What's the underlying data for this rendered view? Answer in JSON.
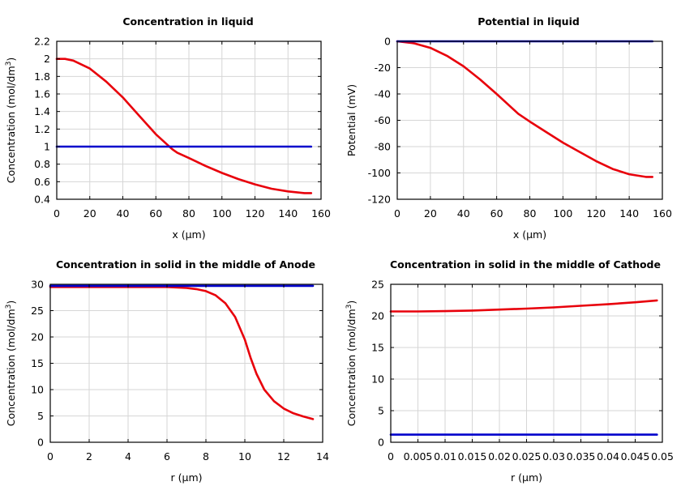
{
  "colors": {
    "red": "#e8000b",
    "blue": "#0000cc"
  },
  "chart_data": [
    {
      "type": "line",
      "title": "Concentration in liquid",
      "xlabel": "x (μm)",
      "ylabel": "Concentration (mol/dm",
      "ylabel_sup": "3",
      "ylabel_end": ")",
      "xlim": [
        0,
        160
      ],
      "ylim": [
        0.4,
        2.2
      ],
      "xticks": [
        0,
        20,
        40,
        60,
        80,
        100,
        120,
        140,
        160
      ],
      "xtick_labels": [
        "0",
        "20",
        "40",
        "60",
        "80",
        "100",
        "120",
        "140",
        "160"
      ],
      "yticks": [
        0.4,
        0.6,
        0.8,
        1.0,
        1.2,
        1.4,
        1.6,
        1.8,
        2.0,
        2.2
      ],
      "ytick_labels": [
        "0.4",
        "0.6",
        "0.8",
        "1",
        "1.2",
        "1.4",
        "1.6",
        "1.8",
        "2",
        "2.2"
      ],
      "grid": true,
      "series": [
        {
          "color": "#e8000b",
          "x": [
            0,
            5,
            10,
            20,
            30,
            40,
            50,
            60,
            70,
            73,
            80,
            90,
            100,
            110,
            120,
            130,
            140,
            150,
            154
          ],
          "y": [
            2.0,
            2.0,
            1.98,
            1.89,
            1.74,
            1.56,
            1.35,
            1.14,
            0.97,
            0.93,
            0.87,
            0.78,
            0.7,
            0.63,
            0.57,
            0.52,
            0.49,
            0.47,
            0.47
          ]
        },
        {
          "color": "#0000cc",
          "x": [
            0,
            154
          ],
          "y": [
            1.0,
            1.0
          ]
        }
      ]
    },
    {
      "type": "line",
      "title": "Potential in liquid",
      "xlabel": "x (μm)",
      "ylabel": "Potential (mV)",
      "ylabel_sup": "",
      "ylabel_end": "",
      "xlim": [
        0,
        160
      ],
      "ylim": [
        -120,
        0
      ],
      "xticks": [
        0,
        20,
        40,
        60,
        80,
        100,
        120,
        140,
        160
      ],
      "xtick_labels": [
        "0",
        "20",
        "40",
        "60",
        "80",
        "100",
        "120",
        "140",
        "160"
      ],
      "yticks": [
        -120,
        -100,
        -80,
        -60,
        -40,
        -20,
        0
      ],
      "ytick_labels": [
        "-120",
        "-100",
        "-80",
        "-60",
        "-40",
        "-20",
        "0"
      ],
      "grid": true,
      "series": [
        {
          "color": "#e8000b",
          "x": [
            0,
            10,
            20,
            30,
            40,
            50,
            60,
            73,
            80,
            90,
            100,
            110,
            120,
            130,
            140,
            150,
            154
          ],
          "y": [
            0,
            -1.5,
            -5,
            -11,
            -19,
            -29,
            -40,
            -55,
            -61,
            -69,
            -77,
            -84,
            -91,
            -97,
            -101,
            -103,
            -103
          ]
        },
        {
          "color": "#0000cc",
          "x": [
            0,
            154
          ],
          "y": [
            0,
            0
          ]
        }
      ]
    },
    {
      "type": "line",
      "title": "Concentration in solid in the middle of Anode",
      "xlabel": "r (μm)",
      "ylabel": "Concentration (mol/dm",
      "ylabel_sup": "3",
      "ylabel_end": ")",
      "xlim": [
        0,
        14
      ],
      "ylim": [
        0,
        30
      ],
      "xticks": [
        0,
        2,
        4,
        6,
        8,
        10,
        12,
        14
      ],
      "xtick_labels": [
        "0",
        "2",
        "4",
        "6",
        "8",
        "10",
        "12",
        "14"
      ],
      "yticks": [
        0,
        5,
        10,
        15,
        20,
        25,
        30
      ],
      "ytick_labels": [
        "0",
        "5",
        "10",
        "15",
        "20",
        "25",
        "30"
      ],
      "grid": true,
      "series": [
        {
          "color": "#e8000b",
          "x": [
            0,
            2,
            4,
            6,
            7,
            7.5,
            8,
            8.5,
            9,
            9.5,
            10,
            10.3,
            10.6,
            11,
            11.5,
            12,
            12.5,
            13,
            13.5
          ],
          "y": [
            29.5,
            29.5,
            29.5,
            29.5,
            29.3,
            29.1,
            28.7,
            27.9,
            26.4,
            23.8,
            19.5,
            16.0,
            13.0,
            10.0,
            7.8,
            6.4,
            5.5,
            4.9,
            4.4
          ]
        },
        {
          "color": "#0000cc",
          "x": [
            0,
            13.5
          ],
          "y": [
            29.7,
            29.7
          ]
        }
      ]
    },
    {
      "type": "line",
      "title": "Concentration in solid in the middle of Cathode",
      "xlabel": "r (μm)",
      "ylabel": "Concentration (mol/dm",
      "ylabel_sup": "3",
      "ylabel_end": ")",
      "xlim": [
        0,
        0.05
      ],
      "ylim": [
        0,
        25
      ],
      "xticks": [
        0,
        0.005,
        0.01,
        0.015,
        0.02,
        0.025,
        0.03,
        0.035,
        0.04,
        0.045,
        0.05
      ],
      "xtick_labels": [
        "0",
        "0.005",
        "0.01",
        "0.015",
        "0.02",
        "0.025",
        "0.03",
        "0.035",
        "0.04",
        "0.045",
        "0.05"
      ],
      "yticks": [
        0,
        5,
        10,
        15,
        20,
        25
      ],
      "ytick_labels": [
        "0",
        "5",
        "10",
        "15",
        "20",
        "25"
      ],
      "grid": true,
      "series": [
        {
          "color": "#e8000b",
          "x": [
            0,
            0.005,
            0.01,
            0.015,
            0.02,
            0.025,
            0.03,
            0.035,
            0.04,
            0.045,
            0.049
          ],
          "y": [
            20.7,
            20.7,
            20.75,
            20.85,
            21.0,
            21.15,
            21.35,
            21.6,
            21.85,
            22.15,
            22.45
          ]
        },
        {
          "color": "#0000cc",
          "x": [
            0,
            0.049
          ],
          "y": [
            1.2,
            1.2
          ]
        }
      ]
    }
  ]
}
